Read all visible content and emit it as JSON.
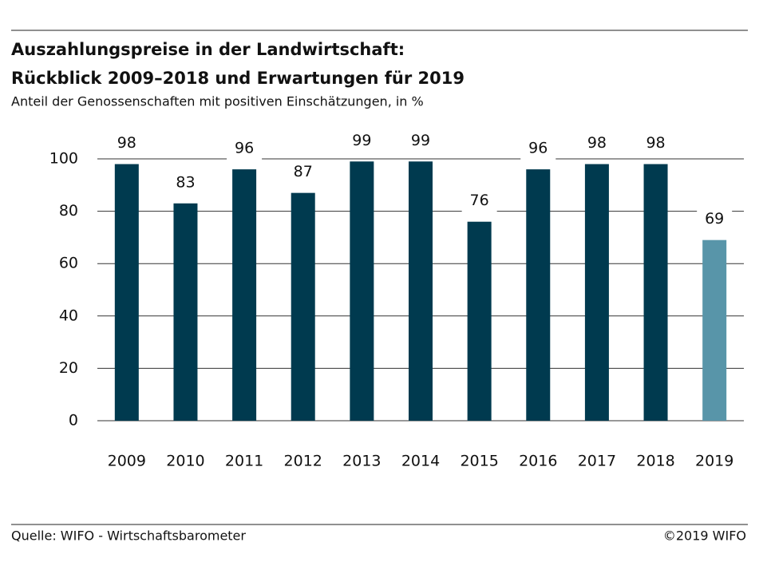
{
  "chart_data": {
    "type": "bar",
    "title": "Auszahlungspreise in der Landwirtschaft:",
    "subtitle_line": "Rückblick 2009–2018 und Erwartungen für 2019",
    "subtitle": "Anteil der Genossenschaften mit positiven Einschätzungen, in %",
    "categories": [
      "2009",
      "2010",
      "2011",
      "2012",
      "2013",
      "2014",
      "2015",
      "2016",
      "2017",
      "2018",
      "2019"
    ],
    "values": [
      98,
      83,
      96,
      87,
      99,
      99,
      76,
      96,
      98,
      98,
      69
    ],
    "colors": [
      "#003a4f",
      "#003a4f",
      "#003a4f",
      "#003a4f",
      "#003a4f",
      "#003a4f",
      "#003a4f",
      "#003a4f",
      "#003a4f",
      "#003a4f",
      "#5895a9"
    ],
    "ylim": [
      0,
      100
    ],
    "yticks": [
      0,
      20,
      40,
      60,
      80,
      100
    ],
    "grid": true
  },
  "footer": {
    "source": "Quelle: WIFO - Wirtschaftsbarometer",
    "copyright": "©2019 WIFO"
  }
}
